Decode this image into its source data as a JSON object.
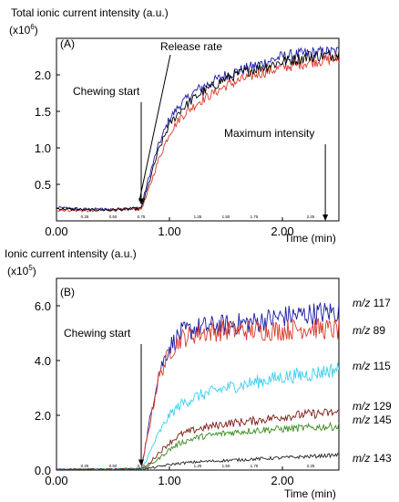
{
  "chart_data": [
    {
      "panel": "(A)",
      "type": "line",
      "title": "Total ionic current intensity (a.u.)",
      "multiplier": "(x10",
      "multiplier_exp": "6",
      "multiplier_close": ")",
      "xlabel": "Time (min)",
      "xlim": [
        0,
        2.5
      ],
      "ylim": [
        0,
        2.5
      ],
      "x_ticks": [
        "0.00",
        "1.00",
        "2.00"
      ],
      "x_minor_ticks": [
        "0.25",
        "0.50",
        "0.75",
        "1.25",
        "1.50",
        "1.75",
        "2.25"
      ],
      "y_ticks": [
        "0.5",
        "1.0",
        "1.5",
        "2.0"
      ],
      "annotations": [
        "Chewing start",
        "Release rate",
        "Maximum intensity"
      ],
      "annotation_points": {
        "chewing_start_x": 0.75,
        "maximum_intensity_x": 2.38
      },
      "colors": [
        "#1a1aa0",
        "#d93a2a",
        "#000000"
      ],
      "series": [
        {
          "color": "#1a1aa0",
          "x": [
            0,
            0.25,
            0.5,
            0.75,
            0.8,
            0.9,
            1.0,
            1.1,
            1.25,
            1.5,
            1.75,
            2.0,
            2.25,
            2.5
          ],
          "y": [
            0.18,
            0.16,
            0.16,
            0.18,
            0.5,
            1.02,
            1.4,
            1.6,
            1.8,
            2.0,
            2.12,
            2.25,
            2.3,
            2.32
          ]
        },
        {
          "color": "#d93a2a",
          "x": [
            0,
            0.25,
            0.5,
            0.75,
            0.8,
            0.9,
            1.0,
            1.1,
            1.25,
            1.5,
            1.75,
            2.0,
            2.25,
            2.5
          ],
          "y": [
            0.15,
            0.14,
            0.15,
            0.16,
            0.35,
            0.82,
            1.2,
            1.42,
            1.62,
            1.85,
            2.0,
            2.1,
            2.18,
            2.22
          ]
        },
        {
          "color": "#000000",
          "x": [
            0,
            0.25,
            0.5,
            0.75,
            0.8,
            0.9,
            1.0,
            1.1,
            1.25,
            1.5,
            1.75,
            2.0,
            2.25,
            2.5
          ],
          "y": [
            0.17,
            0.15,
            0.15,
            0.17,
            0.42,
            0.95,
            1.32,
            1.52,
            1.72,
            1.95,
            2.08,
            2.18,
            2.25,
            2.28
          ]
        }
      ]
    },
    {
      "panel": "(B)",
      "type": "line",
      "title": "Ionic current intensity (a.u.)",
      "multiplier": "(x10",
      "multiplier_exp": "5",
      "multiplier_close": ")",
      "xlabel": "Time (min)",
      "xlim": [
        0,
        2.5
      ],
      "ylim": [
        0,
        7
      ],
      "x_ticks": [
        "0.00",
        "1.00",
        "2.00"
      ],
      "x_minor_ticks": [
        "0.25",
        "0.50",
        "0.75",
        "1.25",
        "1.50",
        "1.75",
        "2.25"
      ],
      "y_ticks": [
        "0.0",
        "2.0",
        "4.0",
        "6.0"
      ],
      "annotations": [
        "Chewing start"
      ],
      "annotation_points": {
        "chewing_start_x": 0.75
      },
      "series": [
        {
          "name": "m/z 117",
          "mz_prefix": "m/z",
          "mz": "117",
          "color": "#1a1aa0",
          "x": [
            0,
            0.5,
            0.75,
            0.8,
            0.9,
            1.0,
            1.1,
            1.25,
            1.5,
            1.75,
            2.0,
            2.25,
            2.5
          ],
          "y": [
            0.02,
            0.03,
            0.05,
            1.2,
            3.5,
            4.5,
            5.0,
            5.2,
            5.3,
            5.4,
            5.6,
            5.7,
            5.8
          ]
        },
        {
          "name": "m/z 89",
          "mz_prefix": "m/z",
          "mz": "89",
          "color": "#d93a2a",
          "x": [
            0,
            0.5,
            0.75,
            0.8,
            0.9,
            1.0,
            1.1,
            1.25,
            1.5,
            1.75,
            2.0,
            2.25,
            2.5
          ],
          "y": [
            0.02,
            0.03,
            0.05,
            1.1,
            3.3,
            4.3,
            4.8,
            5.0,
            5.1,
            5.1,
            5.1,
            5.2,
            5.1
          ]
        },
        {
          "name": "m/z 115",
          "mz_prefix": "m/z",
          "mz": "115",
          "color": "#39d0f0",
          "x": [
            0,
            0.5,
            0.75,
            0.8,
            0.9,
            1.0,
            1.1,
            1.25,
            1.5,
            1.75,
            2.0,
            2.25,
            2.5
          ],
          "y": [
            0.02,
            0.03,
            0.04,
            0.4,
            1.3,
            2.0,
            2.4,
            2.7,
            3.0,
            3.2,
            3.4,
            3.5,
            3.7
          ]
        },
        {
          "name": "m/z 129",
          "mz_prefix": "m/z",
          "mz": "129",
          "color": "#7a1a10",
          "x": [
            0,
            0.5,
            0.75,
            0.8,
            0.9,
            1.0,
            1.1,
            1.25,
            1.5,
            1.75,
            2.0,
            2.25,
            2.5
          ],
          "y": [
            0.01,
            0.02,
            0.03,
            0.15,
            0.6,
            1.0,
            1.3,
            1.5,
            1.7,
            1.8,
            1.95,
            2.05,
            2.1
          ]
        },
        {
          "name": "m/z 145",
          "mz_prefix": "m/z",
          "mz": "145",
          "color": "#3a8a20",
          "x": [
            0,
            0.5,
            0.75,
            0.8,
            0.9,
            1.0,
            1.1,
            1.25,
            1.5,
            1.75,
            2.0,
            2.25,
            2.5
          ],
          "y": [
            0.01,
            0.02,
            0.03,
            0.1,
            0.4,
            0.75,
            1.0,
            1.2,
            1.35,
            1.45,
            1.5,
            1.55,
            1.6
          ]
        },
        {
          "name": "m/z 143",
          "mz_prefix": "m/z",
          "mz": "143",
          "color": "#222222",
          "x": [
            0,
            0.5,
            0.75,
            0.8,
            0.9,
            1.0,
            1.1,
            1.25,
            1.5,
            1.75,
            2.0,
            2.25,
            2.5
          ],
          "y": [
            0.01,
            0.01,
            0.02,
            0.05,
            0.12,
            0.2,
            0.25,
            0.3,
            0.35,
            0.4,
            0.45,
            0.5,
            0.55
          ]
        }
      ]
    }
  ]
}
